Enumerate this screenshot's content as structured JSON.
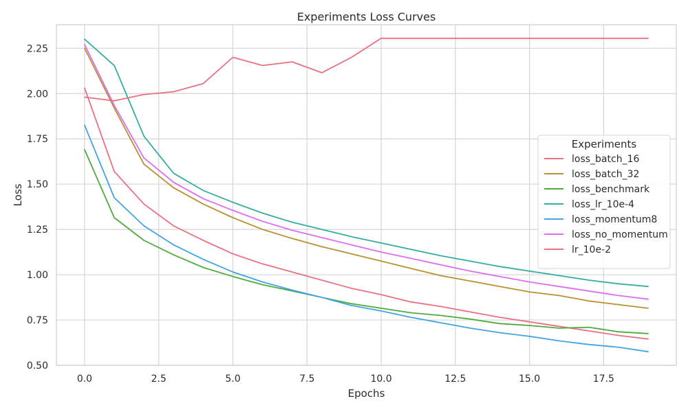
{
  "chart_data": {
    "type": "line",
    "title": "Experiments Loss Curves",
    "xlabel": "Epochs",
    "ylabel": "Loss",
    "xlim": [
      -0.95,
      19.95
    ],
    "ylim": [
      0.5,
      2.38
    ],
    "xticks": [
      0.0,
      2.5,
      5.0,
      7.5,
      10.0,
      12.5,
      15.0,
      17.5
    ],
    "xtick_labels": [
      "0.0",
      "2.5",
      "5.0",
      "7.5",
      "10.0",
      "12.5",
      "15.0",
      "17.5"
    ],
    "yticks": [
      0.5,
      0.75,
      1.0,
      1.25,
      1.5,
      1.75,
      2.0,
      2.25
    ],
    "ytick_labels": [
      "0.50",
      "0.75",
      "1.00",
      "1.25",
      "1.50",
      "1.75",
      "2.00",
      "2.25"
    ],
    "grid": true,
    "legend_title": "Experiments",
    "legend_position": "center-right",
    "x": [
      0,
      1,
      2,
      3,
      4,
      5,
      6,
      7,
      8,
      9,
      10,
      11,
      12,
      13,
      14,
      15,
      16,
      17,
      18,
      19
    ],
    "series": [
      {
        "name": "loss_batch_16",
        "color": "#ea6f82",
        "values": [
          2.03,
          1.57,
          1.39,
          1.27,
          1.19,
          1.115,
          1.06,
          1.015,
          0.97,
          0.925,
          0.89,
          0.85,
          0.825,
          0.795,
          0.765,
          0.74,
          0.715,
          0.69,
          0.665,
          0.645
        ]
      },
      {
        "name": "loss_batch_32",
        "color": "#b5922f",
        "values": [
          2.25,
          1.92,
          1.61,
          1.48,
          1.39,
          1.315,
          1.25,
          1.2,
          1.155,
          1.115,
          1.075,
          1.035,
          0.995,
          0.965,
          0.935,
          0.905,
          0.885,
          0.855,
          0.835,
          0.815
        ]
      },
      {
        "name": "loss_benchmark",
        "color": "#4eab3b",
        "values": [
          1.69,
          1.315,
          1.19,
          1.11,
          1.04,
          0.99,
          0.945,
          0.91,
          0.875,
          0.84,
          0.815,
          0.79,
          0.775,
          0.755,
          0.73,
          0.72,
          0.705,
          0.71,
          0.685,
          0.675
        ]
      },
      {
        "name": "loss_lr_10e-4",
        "color": "#33ad9d",
        "values": [
          2.3,
          2.155,
          1.765,
          1.56,
          1.465,
          1.4,
          1.34,
          1.29,
          1.25,
          1.21,
          1.175,
          1.14,
          1.105,
          1.075,
          1.045,
          1.02,
          0.995,
          0.97,
          0.95,
          0.935
        ]
      },
      {
        "name": "loss_momentum8",
        "color": "#40a3e3",
        "values": [
          1.825,
          1.425,
          1.27,
          1.165,
          1.085,
          1.015,
          0.96,
          0.915,
          0.875,
          0.83,
          0.8,
          0.765,
          0.735,
          0.705,
          0.68,
          0.66,
          0.635,
          0.615,
          0.6,
          0.575
        ]
      },
      {
        "name": "loss_no_momentum",
        "color": "#df6cf0",
        "values": [
          2.27,
          1.935,
          1.645,
          1.51,
          1.42,
          1.355,
          1.295,
          1.245,
          1.205,
          1.165,
          1.125,
          1.09,
          1.055,
          1.02,
          0.99,
          0.96,
          0.935,
          0.91,
          0.885,
          0.865
        ]
      },
      {
        "name": "lr_10e-2",
        "color": "#ea6f82",
        "values": [
          1.98,
          1.96,
          1.995,
          2.01,
          2.055,
          2.2,
          2.155,
          2.175,
          2.115,
          2.2,
          2.305,
          2.305,
          2.305,
          2.305,
          2.305,
          2.305,
          2.305,
          2.305,
          2.305,
          2.305
        ]
      }
    ]
  }
}
